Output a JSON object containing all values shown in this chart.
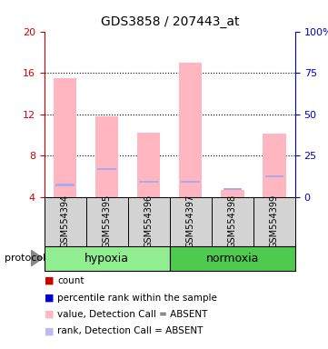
{
  "title": "GDS3858 / 207443_at",
  "samples": [
    "GSM554394",
    "GSM554395",
    "GSM554396",
    "GSM554397",
    "GSM554398",
    "GSM554399"
  ],
  "group_colors": [
    "#90EE90",
    "#4ECB4E"
  ],
  "ylim_left": [
    4,
    20
  ],
  "ylim_right": [
    0,
    100
  ],
  "yticks_left": [
    4,
    8,
    12,
    16,
    20
  ],
  "yticks_right": [
    0,
    25,
    50,
    75,
    100
  ],
  "ytick_labels_left": [
    "4",
    "8",
    "12",
    "16",
    "20"
  ],
  "ytick_labels_right": [
    "0",
    "25",
    "50",
    "75",
    "100%"
  ],
  "left_axis_color": "#cc0000",
  "right_axis_color": "#0000cc",
  "bar_values": [
    15.5,
    11.8,
    10.2,
    17.0,
    4.7,
    10.1
  ],
  "bar_color": "#FFB6C1",
  "rank_values": [
    5.2,
    6.7,
    5.5,
    5.5,
    4.8,
    6.0
  ],
  "rank_color": "#AAAAEE",
  "bar_bottom": 4.0,
  "legend_items": [
    {
      "label": "count",
      "color": "#cc0000"
    },
    {
      "label": "percentile rank within the sample",
      "color": "#0000cc"
    },
    {
      "label": "value, Detection Call = ABSENT",
      "color": "#FFB6C1"
    },
    {
      "label": "rank, Detection Call = ABSENT",
      "color": "#BBBBEE"
    }
  ],
  "protocol_label": "protocol",
  "background_color": "#ffffff",
  "grid_yticks": [
    8,
    12,
    16
  ]
}
